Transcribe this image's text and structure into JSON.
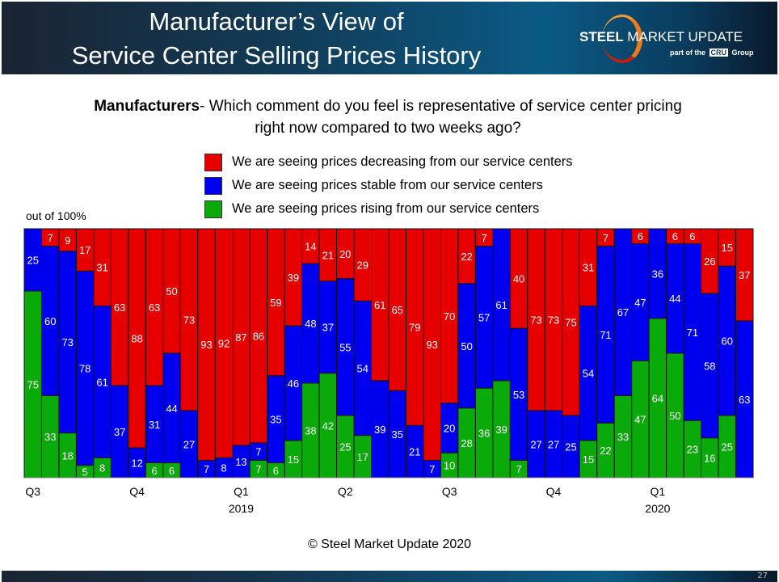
{
  "header": {
    "title_line1": "Manufacturer’s View of",
    "title_line2": "Service Center Selling Prices History",
    "logo_text": "STEEL MARKET UPDATE",
    "logo_sub": "part of the CRU Group"
  },
  "question": {
    "bold": "Manufacturers",
    "text": "- Which comment do you feel is representative of service center pricing right now compared to two weeks ago?"
  },
  "footer": {
    "copyright": "© Steel Market Update 2020",
    "page_number": "27"
  },
  "chart_data": {
    "type": "bar",
    "stacked": true,
    "ylabel": "out of 100%",
    "ylim": [
      0,
      100
    ],
    "grid": false,
    "legend_placement": "top",
    "x_tick_labels": [
      {
        "index": 0,
        "label": "Q3",
        "year": ""
      },
      {
        "index": 6,
        "label": "Q4",
        "year": ""
      },
      {
        "index": 12,
        "label": "Q1",
        "year": "2019"
      },
      {
        "index": 18,
        "label": "Q2",
        "year": ""
      },
      {
        "index": 24,
        "label": "Q3",
        "year": ""
      },
      {
        "index": 30,
        "label": "Q4",
        "year": ""
      },
      {
        "index": 36,
        "label": "Q1",
        "year": "2020"
      }
    ],
    "series": [
      {
        "name": "We are seeing prices rising from our service centers",
        "color": "#0aaa0a",
        "values": [
          75,
          33,
          18,
          5,
          8,
          0,
          0,
          6,
          6,
          0,
          0,
          0,
          0,
          7,
          6,
          15,
          38,
          42,
          25,
          17,
          0,
          0,
          0,
          0,
          10,
          28,
          36,
          39,
          7,
          0,
          0,
          0,
          15,
          22,
          33,
          47,
          64,
          50,
          23,
          16,
          25,
          0
        ]
      },
      {
        "name": "We are seeing prices stable from our service centers",
        "color": "#0000f0",
        "values": [
          25,
          60,
          73,
          78,
          61,
          37,
          12,
          31,
          44,
          27,
          7,
          8,
          13,
          7,
          35,
          46,
          48,
          37,
          55,
          54,
          39,
          35,
          21,
          7,
          20,
          50,
          57,
          61,
          53,
          27,
          27,
          25,
          54,
          71,
          67,
          47,
          36,
          44,
          71,
          58,
          60,
          63
        ]
      },
      {
        "name": "We are seeing prices decreasing from our service centers",
        "color": "#e60000",
        "values": [
          0,
          7,
          9,
          17,
          31,
          63,
          88,
          63,
          50,
          73,
          93,
          92,
          87,
          86,
          59,
          39,
          14,
          21,
          20,
          29,
          61,
          65,
          79,
          93,
          70,
          22,
          7,
          0,
          40,
          73,
          73,
          75,
          31,
          7,
          0,
          6,
          0,
          6,
          6,
          26,
          15,
          37
        ]
      }
    ],
    "legend_order": [
      2,
      1,
      0
    ]
  }
}
